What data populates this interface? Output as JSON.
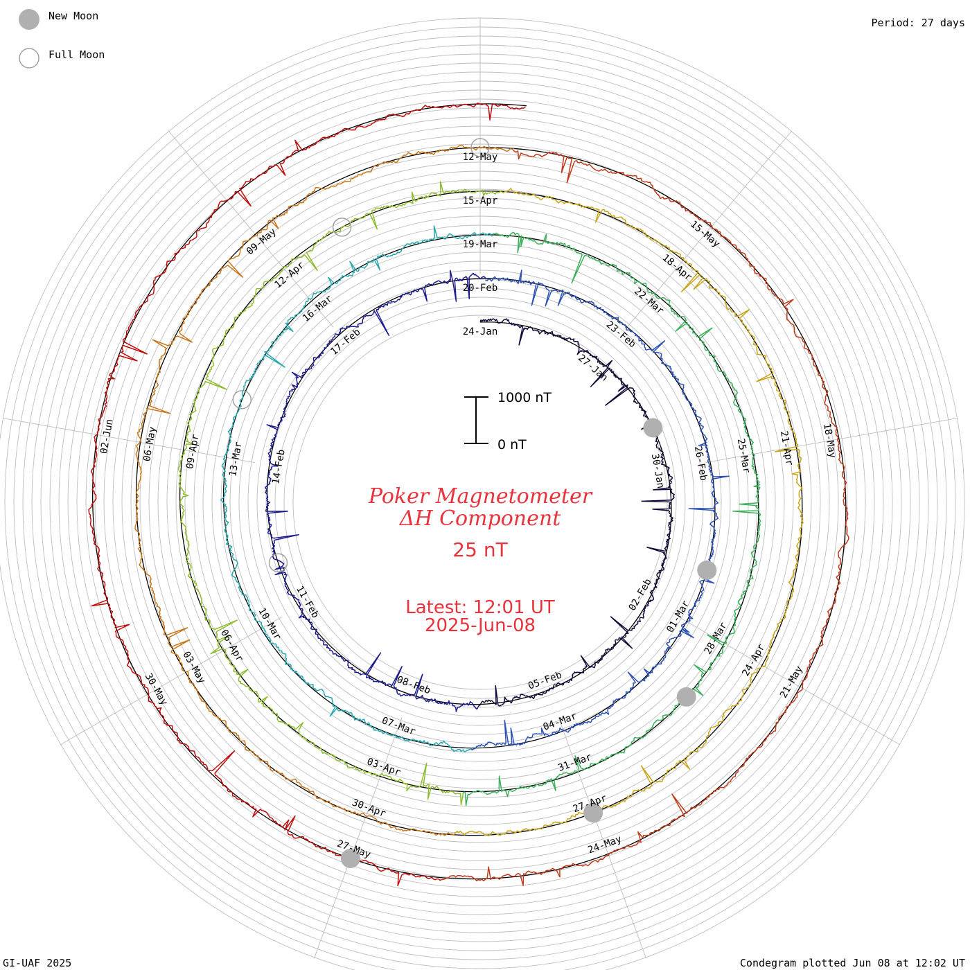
{
  "legend": {
    "new_moon": "New Moon",
    "full_moon": "Full Moon"
  },
  "header": {
    "period": "Period: 27 days"
  },
  "footer": {
    "credit": "GI-UAF 2025",
    "plotted": "Condegram plotted Jun 08 at 12:02 UT"
  },
  "title": {
    "line1": "Poker Magnetometer",
    "line2": "ΔH Component",
    "scale": "25 nT",
    "latest_label": "Latest: 12:01 UT",
    "latest_date": "2025-Jun-08"
  },
  "scale_bar": {
    "top_label": "1000 nT",
    "bottom_label": "0 nT"
  },
  "chart_data": {
    "type": "line",
    "title": "Poker Magnetometer ΔH Component",
    "period_days": 27,
    "scale_nT": 25,
    "scale_bar_nT": [
      0,
      1000
    ],
    "latest": "2025-Jun-08 12:01 UT",
    "date_labels": [
      "24-Jan",
      "27-Jan",
      "30-Jan",
      "02-Feb",
      "05-Feb",
      "08-Feb",
      "11-Feb",
      "14-Feb",
      "17-Feb",
      "20-Feb",
      "23-Feb",
      "26-Feb",
      "01-Mar",
      "04-Mar",
      "07-Mar",
      "10-Mar",
      "13-Mar",
      "16-Mar",
      "19-Mar",
      "22-Mar",
      "25-Mar",
      "28-Mar",
      "31-Mar",
      "03-Apr",
      "06-Apr",
      "09-Apr",
      "12-Apr",
      "15-Apr",
      "18-Apr",
      "21-Apr",
      "24-Apr",
      "27-Apr",
      "30-Apr",
      "03-May",
      "06-May",
      "09-May",
      "12-May",
      "15-May",
      "18-May",
      "21-May",
      "24-May",
      "27-May",
      "30-May",
      "02-Jun"
    ],
    "label_start_index": 0,
    "new_moons": [
      "29-Jan",
      "28-Feb",
      "29-Mar",
      "27-Apr",
      "27-May"
    ],
    "full_moons": [
      "12-Feb",
      "14-Mar",
      "13-Apr",
      "12-May"
    ],
    "series_colors": [
      "#15083a",
      "#1c1c8f",
      "#2c52b8",
      "#27a8b0",
      "#3bb05a",
      "#8dbb2e",
      "#c8a41a",
      "#c9761a",
      "#c0391b",
      "#c00c0c"
    ],
    "axis_color": "#000000",
    "grid_color": "#bdbdbd",
    "moon_color": "#b0b0b0",
    "title_color": "#e8323c"
  }
}
